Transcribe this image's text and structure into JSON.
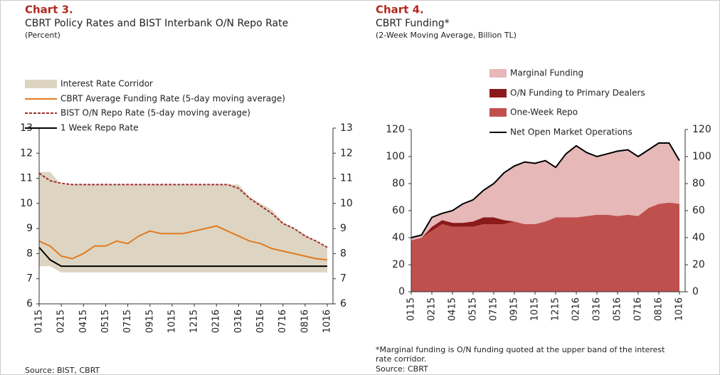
{
  "chart_data": [
    {
      "type": "line",
      "title": "Chart 3.",
      "subtitle": "CBRT Policy Rates and BIST Interbank O/N Repo Rate",
      "note": "(Percent)",
      "source": "Source: BIST, CBRT",
      "categories": [
        "0115",
        null,
        "0215",
        null,
        "0415",
        null,
        "0515",
        null,
        "0715",
        null,
        "0915",
        null,
        "1015",
        null,
        "1215",
        null,
        "0216",
        null,
        "0316",
        null,
        "0516",
        null,
        "0716",
        null,
        "0816",
        null,
        "1016"
      ],
      "ylim": [
        6,
        13
      ],
      "yticks": [
        6,
        7,
        8,
        9,
        10,
        11,
        12,
        13
      ],
      "y2lim": [
        6,
        13
      ],
      "y2ticks": [
        6,
        7,
        8,
        9,
        10,
        11,
        12,
        13
      ],
      "series": [
        {
          "name": "Interest Rate Corridor",
          "type": "band",
          "color": "#ddd5c2",
          "values": [
            11.25,
            11.25,
            10.75,
            10.75,
            10.75,
            10.75,
            10.75,
            10.75,
            10.75,
            10.75,
            10.75,
            10.75,
            10.75,
            10.75,
            10.75,
            10.75,
            10.75,
            10.75,
            10.75,
            10.25,
            10.0,
            9.75,
            9.25,
            9.0,
            8.75,
            8.5,
            8.25
          ],
          "lower": [
            7.5,
            7.5,
            7.25,
            7.25,
            7.25,
            7.25,
            7.25,
            7.25,
            7.25,
            7.25,
            7.25,
            7.25,
            7.25,
            7.25,
            7.25,
            7.25,
            7.25,
            7.25,
            7.25,
            7.25,
            7.25,
            7.25,
            7.25,
            7.25,
            7.25,
            7.25,
            7.25
          ]
        },
        {
          "name": "CBRT Average Funding Rate (5-day moving average)",
          "type": "line",
          "color": "#e07b20",
          "values": [
            8.5,
            8.3,
            7.9,
            7.8,
            8.0,
            8.3,
            8.3,
            8.5,
            8.4,
            8.7,
            8.9,
            8.8,
            8.8,
            8.8,
            8.9,
            9.0,
            9.1,
            8.9,
            8.7,
            8.5,
            8.4,
            8.2,
            8.1,
            8.0,
            7.9,
            7.8,
            7.75
          ]
        },
        {
          "name": "BIST O/N Repo Rate (5-day moving average)",
          "type": "line",
          "dashed": true,
          "color": "#a03030",
          "values": [
            11.2,
            10.9,
            10.8,
            10.75,
            10.75,
            10.75,
            10.75,
            10.75,
            10.75,
            10.75,
            10.75,
            10.75,
            10.75,
            10.75,
            10.75,
            10.75,
            10.75,
            10.75,
            10.6,
            10.2,
            9.9,
            9.6,
            9.2,
            9.0,
            8.7,
            8.5,
            8.25
          ]
        },
        {
          "name": "1 Week Repo Rate",
          "type": "line",
          "color": "#000000",
          "values": [
            8.25,
            7.75,
            7.5,
            7.5,
            7.5,
            7.5,
            7.5,
            7.5,
            7.5,
            7.5,
            7.5,
            7.5,
            7.5,
            7.5,
            7.5,
            7.5,
            7.5,
            7.5,
            7.5,
            7.5,
            7.5,
            7.5,
            7.5,
            7.5,
            7.5,
            7.5,
            7.5
          ]
        }
      ]
    },
    {
      "type": "area",
      "stacked": true,
      "title": "Chart 4.",
      "subtitle": "CBRT Funding*",
      "note": "(2-Week Moving Average, Billion TL)",
      "footnote": [
        "*Marginal funding is O/N funding quoted at the upper band of the interest",
        "rate corridor."
      ],
      "source": "Source: CBRT",
      "categories": [
        "0115",
        null,
        "0215",
        null,
        "0415",
        null,
        "0515",
        null,
        "0715",
        null,
        "0915",
        null,
        "1015",
        null,
        "1215",
        null,
        "0216",
        null,
        "0316",
        null,
        "0516",
        null,
        "0716",
        null,
        "0816",
        null,
        "1016"
      ],
      "ylim": [
        0,
        120
      ],
      "yticks": [
        0,
        20,
        40,
        60,
        80,
        100,
        120
      ],
      "y2lim": [
        0,
        120
      ],
      "y2ticks": [
        0,
        20,
        40,
        60,
        80,
        100,
        120
      ],
      "series": [
        {
          "name": "Marginal Funding",
          "type": "area",
          "color": "#e6b8b7",
          "values": [
            2,
            2,
            7,
            5,
            9,
            14,
            16,
            20,
            25,
            35,
            41,
            46,
            45,
            45,
            37,
            47,
            53,
            47,
            43,
            45,
            48,
            48,
            44,
            43,
            45,
            44,
            32
          ]
        },
        {
          "name": "O/N Funding to Primary Dealers",
          "type": "area",
          "color": "#8b1a1a",
          "values": [
            0,
            0,
            3,
            3,
            3,
            3,
            4,
            5,
            5,
            3,
            0,
            0,
            0,
            0,
            0,
            0,
            0,
            0,
            0,
            0,
            0,
            0,
            0,
            0,
            0,
            0,
            0
          ]
        },
        {
          "name": "One-Week Repo",
          "type": "area",
          "color": "#c0504d",
          "values": [
            38,
            40,
            45,
            50,
            48,
            48,
            48,
            50,
            50,
            50,
            52,
            50,
            50,
            52,
            55,
            55,
            55,
            56,
            57,
            57,
            56,
            57,
            56,
            62,
            65,
            66,
            65
          ]
        },
        {
          "name": "Net Open Market Operations",
          "type": "line",
          "color": "#000000",
          "values": [
            40,
            42,
            55,
            58,
            60,
            65,
            68,
            75,
            80,
            88,
            93,
            96,
            95,
            97,
            92,
            102,
            108,
            103,
            100,
            102,
            104,
            105,
            100,
            105,
            110,
            110,
            97
          ]
        }
      ]
    }
  ]
}
